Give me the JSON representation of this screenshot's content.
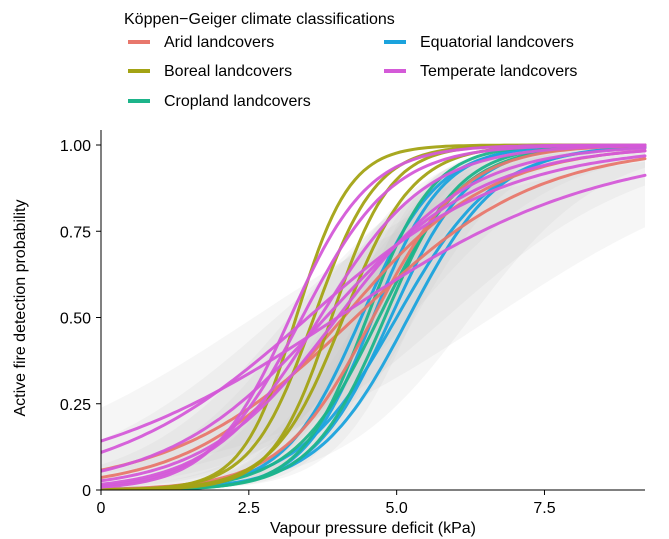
{
  "chart_data": {
    "type": "line",
    "title": "",
    "xlabel": "Vapour pressure deficit (kPa)",
    "ylabel": "Active fire detection probability",
    "xlim": [
      0,
      9.2
    ],
    "ylim": [
      0,
      1.03
    ],
    "xticks": [
      {
        "value": 0,
        "label": "0"
      },
      {
        "value": 2.5,
        "label": "2.5"
      },
      {
        "value": 5,
        "label": "5.0"
      },
      {
        "value": 7.5,
        "label": "7.5"
      }
    ],
    "yticks": [
      {
        "value": 0,
        "label": "0"
      },
      {
        "value": 0.25,
        "label": "0.25"
      },
      {
        "value": 0.5,
        "label": "0.50"
      },
      {
        "value": 0.75,
        "label": "0.75"
      },
      {
        "value": 1,
        "label": "1.00"
      }
    ],
    "grid": false,
    "legend": {
      "title": "Köppen−Geiger climate classifications",
      "placement": "top",
      "entries": [
        {
          "label": "Arid landcovers",
          "color": "#E8776C"
        },
        {
          "label": "Boreal landcovers",
          "color": "#A3A314"
        },
        {
          "label": "Cropland landcovers",
          "color": "#1DB48A"
        },
        {
          "label": "Equatorial landcovers",
          "color": "#1BA3DD"
        },
        {
          "label": "Temperate landcovers",
          "color": "#D45AD8"
        }
      ]
    },
    "background_band_color": "#c8c8c8",
    "curve_model": "logistic: y = 1 / (1 + exp(-k * (x - x0)))",
    "series": [
      {
        "category": "Arid landcovers",
        "color": "#E8776C",
        "x0": 4.1,
        "k": 0.8
      },
      {
        "category": "Arid landcovers",
        "color": "#E8776C",
        "x0": 4.6,
        "k": 1.3
      },
      {
        "category": "Arid landcovers",
        "color": "#E8776C",
        "x0": 4.3,
        "k": 0.65
      },
      {
        "category": "Boreal landcovers",
        "color": "#A3A314",
        "x0": 3.3,
        "k": 2.2
      },
      {
        "category": "Boreal landcovers",
        "color": "#A3A314",
        "x0": 3.6,
        "k": 1.9
      },
      {
        "category": "Boreal landcovers",
        "color": "#A3A314",
        "x0": 3.9,
        "k": 2.0
      },
      {
        "category": "Boreal landcovers",
        "color": "#A3A314",
        "x0": 4.1,
        "k": 1.7
      },
      {
        "category": "Cropland landcovers",
        "color": "#1DB48A",
        "x0": 4.5,
        "k": 1.8
      },
      {
        "category": "Cropland landcovers",
        "color": "#1DB48A",
        "x0": 4.8,
        "k": 1.6
      },
      {
        "category": "Cropland landcovers",
        "color": "#1DB48A",
        "x0": 4.7,
        "k": 1.4
      },
      {
        "category": "Equatorial landcovers",
        "color": "#1BA3DD",
        "x0": 4.6,
        "k": 1.7
      },
      {
        "category": "Equatorial landcovers",
        "color": "#1BA3DD",
        "x0": 4.9,
        "k": 1.5
      },
      {
        "category": "Equatorial landcovers",
        "color": "#1BA3DD",
        "x0": 5.0,
        "k": 1.2
      },
      {
        "category": "Equatorial landcovers",
        "color": "#1BA3DD",
        "x0": 5.2,
        "k": 1.3
      },
      {
        "category": "Equatorial landcovers",
        "color": "#1BA3DD",
        "x0": 4.4,
        "k": 1.55
      },
      {
        "category": "Temperate landcovers",
        "color": "#D45AD8",
        "x0": 3.2,
        "k": 1.5
      },
      {
        "category": "Temperate landcovers",
        "color": "#D45AD8",
        "x0": 3.7,
        "k": 1.1
      },
      {
        "category": "Temperate landcovers",
        "color": "#D45AD8",
        "x0": 3.4,
        "k": 1.3
      },
      {
        "category": "Temperate landcovers",
        "color": "#D45AD8",
        "x0": 4.0,
        "k": 0.9
      },
      {
        "category": "Temperate landcovers",
        "color": "#D45AD8",
        "x0": 4.0,
        "k": 0.45
      },
      {
        "category": "Temperate landcovers",
        "color": "#D45AD8",
        "x0": 3.5,
        "k": 0.6
      },
      {
        "category": "Temperate landcovers",
        "color": "#D45AD8",
        "x0": 3.8,
        "k": 0.75
      }
    ]
  }
}
